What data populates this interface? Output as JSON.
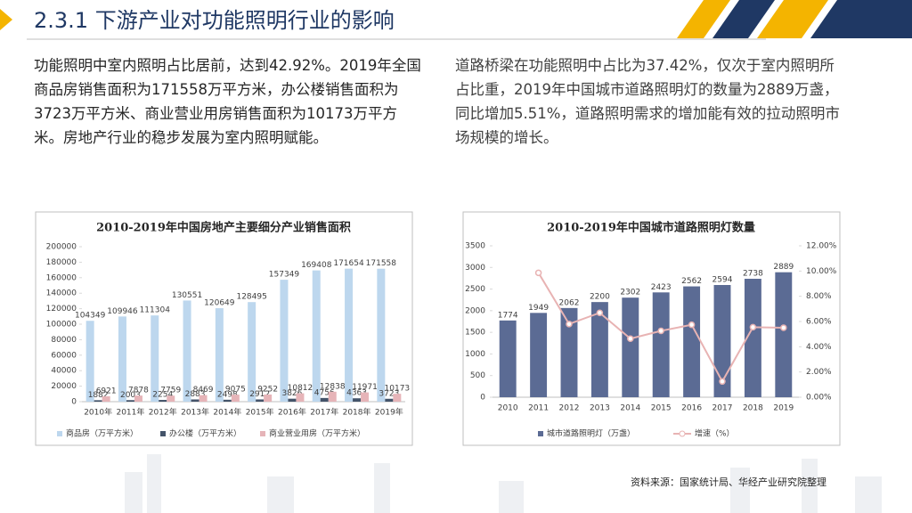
{
  "header": {
    "title": "2.3.1 下游产业对功能照明行业的影响"
  },
  "paragraphs": [
    "功能照明中室内照明占比居前，达到42.92%。2019年全国商品房销售面积为171558万平方米，办公楼销售面积为3723万平方米、商业营业用房销售面积为10173万平方米。房地产行业的稳步发展为室内照明赋能。",
    "道路桥梁在功能照明中占比为37.42%，仅次于室内照明所占比重，2019年中国城市道路照明灯的数量为2889万盏，同比增加5.51%，道路照明需求的增加能有效的拉动照明市场规模的增长。"
  ],
  "source": "资料来源：国家统计局、华经产业研究院整理",
  "chart_data": [
    {
      "type": "bar",
      "title": "2010-2019年中国房地产主要细分产业销售面积",
      "categories": [
        "2010年",
        "2011年",
        "2012年",
        "2013年",
        "2014年",
        "2015年",
        "2016年",
        "2017年",
        "2018年",
        "2019年"
      ],
      "series": [
        {
          "name": "商品房（万平方米）",
          "color": "#bdd7ee",
          "values": [
            104349,
            109946,
            111304,
            130551,
            120649,
            128495,
            157349,
            169408,
            171654,
            171558
          ]
        },
        {
          "name": "办公楼（万平方米）",
          "color": "#44546a",
          "values": [
            1882,
            2003,
            2254,
            2883,
            2498,
            2912,
            3826,
            4756,
            4363,
            3723
          ]
        },
        {
          "name": "商业营业用房（万平方米）",
          "color": "#e6b4b8",
          "values": [
            6921,
            7878,
            7759,
            8469,
            9075,
            9252,
            10812,
            12838,
            11971,
            10173
          ]
        }
      ],
      "ylim": [
        0,
        200000
      ],
      "yticks": [
        0,
        20000,
        40000,
        60000,
        80000,
        100000,
        120000,
        140000,
        160000,
        180000,
        200000
      ],
      "legend": "bottom",
      "grid": false,
      "data_labels": true
    },
    {
      "type": "combo",
      "title": "2010-2019年中国城市道路照明灯数量",
      "categories": [
        "2010",
        "2011",
        "2012",
        "2013",
        "2014",
        "2015",
        "2016",
        "2017",
        "2018",
        "2019"
      ],
      "series": [
        {
          "name": "城市道路照明灯（万盏）",
          "type": "bar",
          "color": "#5b6b94",
          "values": [
            1774,
            1949,
            2062,
            2200,
            2302,
            2423,
            2562,
            2594,
            2738,
            2889
          ]
        },
        {
          "name": "增速（%）",
          "type": "line",
          "axis": "y2",
          "color": "#e8b3b3",
          "values": [
            null,
            9.86,
            5.8,
            6.69,
            4.64,
            5.26,
            5.74,
            1.25,
            5.55,
            5.51
          ]
        }
      ],
      "ylim": [
        0,
        3500
      ],
      "yticks": [
        0,
        500,
        1000,
        1500,
        2000,
        2500,
        3000,
        3500
      ],
      "y2lim": [
        0,
        12
      ],
      "y2ticks": [
        {
          "value": 0,
          "label": "0.00%"
        },
        {
          "value": 2,
          "label": "2.00%"
        },
        {
          "value": 4,
          "label": "4.00%"
        },
        {
          "value": 6,
          "label": "6.00%"
        },
        {
          "value": 8,
          "label": "8.00%"
        },
        {
          "value": 10,
          "label": "10.00%"
        },
        {
          "value": 12,
          "label": "12.00%"
        }
      ],
      "legend": "bottom",
      "grid": false,
      "data_labels": true
    }
  ]
}
